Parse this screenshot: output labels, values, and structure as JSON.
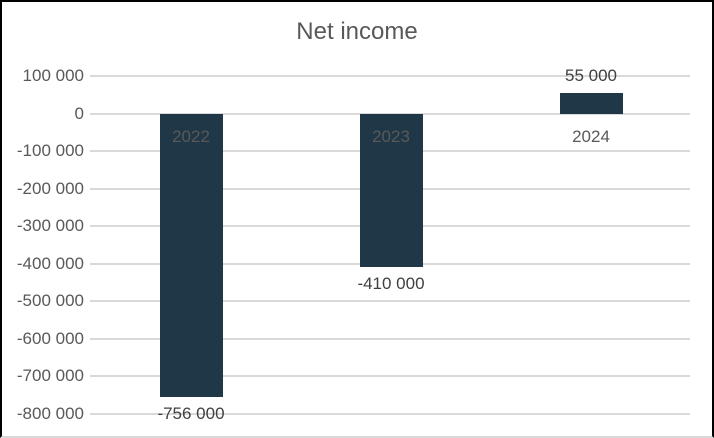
{
  "chart_data": {
    "type": "bar",
    "title": "Net income",
    "categories": [
      "2022",
      "2023",
      "2024"
    ],
    "values": [
      -756000,
      -410000,
      55000
    ],
    "data_labels": [
      "-756 000",
      "-410 000",
      "55 000"
    ],
    "xlabel": "",
    "ylabel": "",
    "y_axis": {
      "min": -800000,
      "max": 100000,
      "ticks": [
        {
          "value": 100000,
          "label": "100 000"
        },
        {
          "value": 0,
          "label": "0"
        },
        {
          "value": -100000,
          "label": "-100 000"
        },
        {
          "value": -200000,
          "label": "-200 000"
        },
        {
          "value": -300000,
          "label": "-300 000"
        },
        {
          "value": -400000,
          "label": "-400 000"
        },
        {
          "value": -500000,
          "label": "-500 000"
        },
        {
          "value": -600000,
          "label": "-600 000"
        },
        {
          "value": -700000,
          "label": "-700 000"
        },
        {
          "value": -800000,
          "label": "-800 000"
        }
      ]
    },
    "grid": true,
    "legend": false,
    "colors": {
      "bar": "#203748",
      "gridline": "#d9d9d9",
      "title_text": "#595959",
      "axis_text": "#595959",
      "category_text": "#595959",
      "data_label_text": "#404040",
      "frame_border": "#000000",
      "background": "#ffffff"
    }
  }
}
